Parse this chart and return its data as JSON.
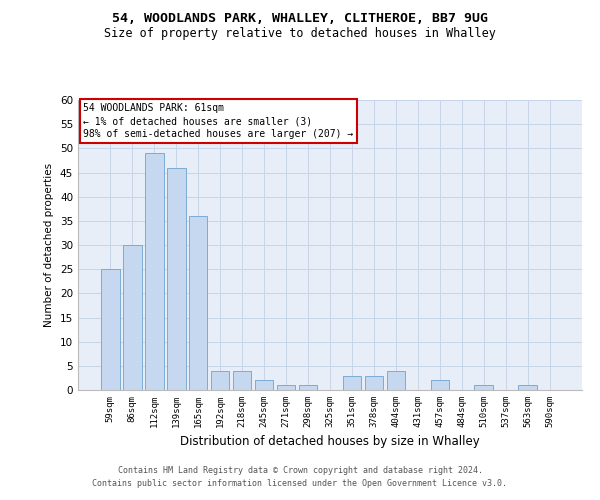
{
  "title_line1": "54, WOODLANDS PARK, WHALLEY, CLITHEROE, BB7 9UG",
  "title_line2": "Size of property relative to detached houses in Whalley",
  "xlabel": "Distribution of detached houses by size in Whalley",
  "ylabel": "Number of detached properties",
  "categories": [
    "59sqm",
    "86sqm",
    "112sqm",
    "139sqm",
    "165sqm",
    "192sqm",
    "218sqm",
    "245sqm",
    "271sqm",
    "298sqm",
    "325sqm",
    "351sqm",
    "378sqm",
    "404sqm",
    "431sqm",
    "457sqm",
    "484sqm",
    "510sqm",
    "537sqm",
    "563sqm",
    "590sqm"
  ],
  "values": [
    25,
    30,
    49,
    46,
    36,
    4,
    4,
    2,
    1,
    1,
    0,
    3,
    3,
    4,
    0,
    2,
    0,
    1,
    0,
    1,
    0
  ],
  "bar_color": "#c5d8f0",
  "bar_edge_color": "#7aadd4",
  "grid_color": "#c8d4e8",
  "background_color": "#e8eef8",
  "ylim": [
    0,
    60
  ],
  "yticks": [
    0,
    5,
    10,
    15,
    20,
    25,
    30,
    35,
    40,
    45,
    50,
    55,
    60
  ],
  "annotation_text": "54 WOODLANDS PARK: 61sqm\n← 1% of detached houses are smaller (3)\n98% of semi-detached houses are larger (207) →",
  "annotation_box_color": "white",
  "annotation_box_edge_color": "#cc0000",
  "footer_line1": "Contains HM Land Registry data © Crown copyright and database right 2024.",
  "footer_line2": "Contains public sector information licensed under the Open Government Licence v3.0."
}
